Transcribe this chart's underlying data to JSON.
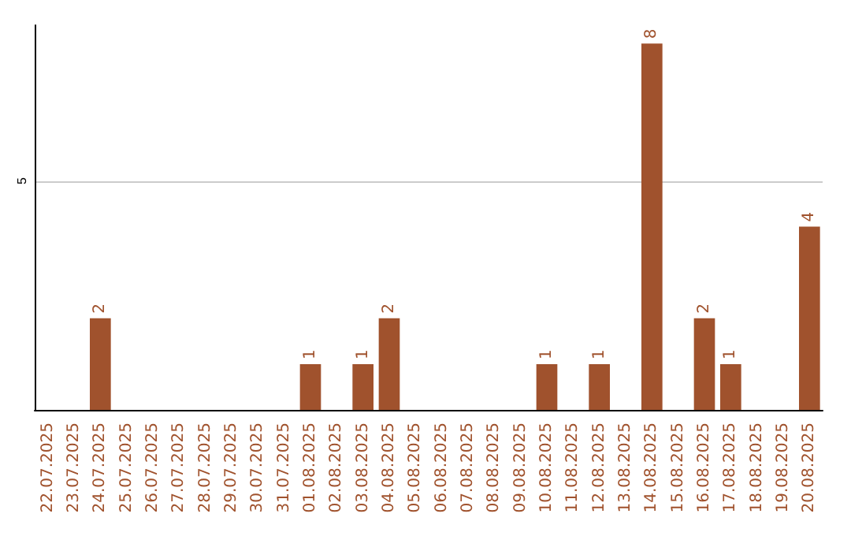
{
  "chart_data": {
    "type": "bar",
    "categories": [
      "22.07.2025",
      "23.07.2025",
      "24.07.2025",
      "25.07.2025",
      "26.07.2025",
      "27.07.2025",
      "28.07.2025",
      "29.07.2025",
      "30.07.2025",
      "31.07.2025",
      "01.08.2025",
      "02.08.2025",
      "03.08.2025",
      "04.08.2025",
      "05.08.2025",
      "06.08.2025",
      "07.08.2025",
      "08.08.2025",
      "09.08.2025",
      "10.08.2025",
      "11.08.2025",
      "12.08.2025",
      "13.08.2025",
      "14.08.2025",
      "15.08.2025",
      "16.08.2025",
      "17.08.2025",
      "18.08.2025",
      "19.08.2025",
      "20.08.2025"
    ],
    "values": [
      0,
      0,
      2,
      0,
      0,
      0,
      0,
      0,
      0,
      0,
      1,
      0,
      1,
      2,
      0,
      0,
      0,
      0,
      0,
      1,
      0,
      1,
      0,
      8,
      0,
      2,
      1,
      0,
      0,
      4
    ],
    "value_labels": [
      null,
      null,
      "2",
      null,
      null,
      null,
      null,
      null,
      null,
      null,
      "1",
      null,
      "1",
      "2",
      null,
      null,
      null,
      null,
      null,
      "1",
      null,
      "1",
      null,
      "8",
      null,
      "2",
      "1",
      null,
      null,
      "4"
    ],
    "color": "#a0522d",
    "ylim": [
      0,
      8.4
    ],
    "yticks": [
      5
    ],
    "grid": "y"
  }
}
